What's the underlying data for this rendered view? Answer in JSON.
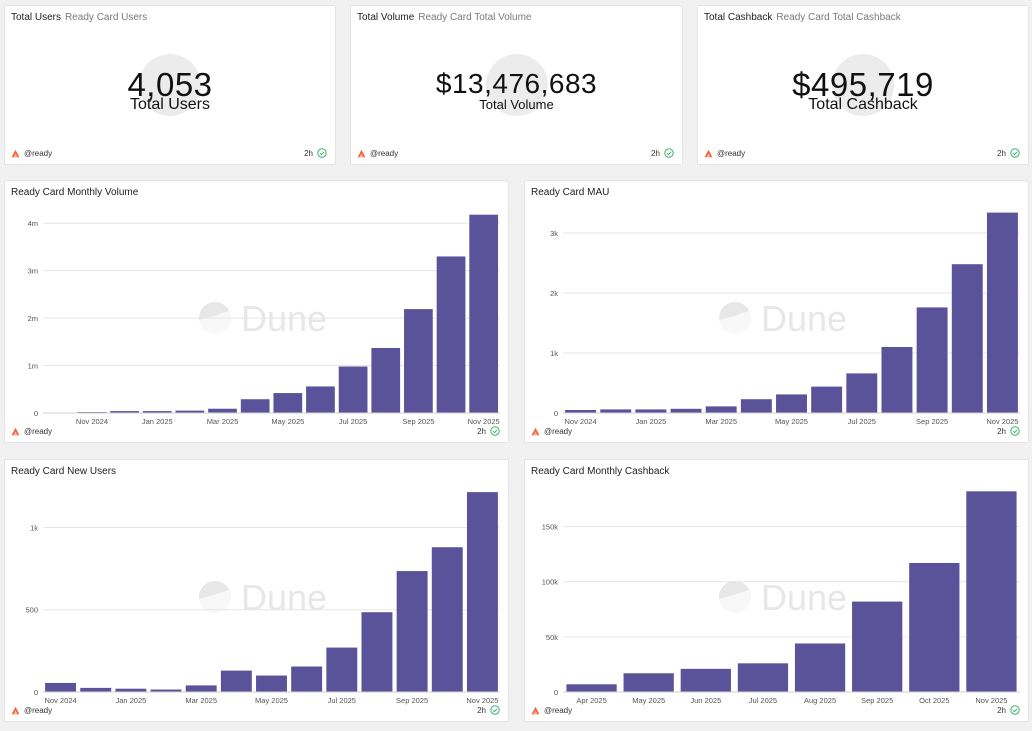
{
  "counters": [
    {
      "title": "Total Users",
      "subtitle": "Ready Card Users",
      "value": "4,053",
      "label": "Total Users",
      "author": "@ready",
      "age": "2h"
    },
    {
      "title": "Total Volume",
      "subtitle": "Ready Card Total Volume",
      "value": "$13,476,683",
      "label": "Total Volume",
      "author": "@ready",
      "age": "2h"
    },
    {
      "title": "Total Cashback",
      "subtitle": "Ready Card Total Cashback",
      "value": "$495,719",
      "label": "Total Cashback",
      "author": "@ready",
      "age": "2h"
    }
  ],
  "charts_meta": [
    {
      "title": "Ready Card Monthly Volume",
      "author": "@ready",
      "age": "2h",
      "watermark": "Dune"
    },
    {
      "title": "Ready Card MAU",
      "author": "@ready",
      "age": "2h",
      "watermark": "Dune"
    },
    {
      "title": "Ready Card New Users",
      "author": "@ready",
      "age": "2h",
      "watermark": "Dune"
    },
    {
      "title": "Ready Card Monthly Cashback",
      "author": "@ready",
      "age": "2h",
      "watermark": "Dune"
    }
  ],
  "colors": {
    "bar": "#5b5399",
    "grid": "#e6e6e6",
    "accent": "#f4623a",
    "check": "#3bb26b"
  },
  "chart_data": [
    {
      "type": "bar",
      "title": "Ready Card Monthly Volume",
      "categories": [
        "Oct 2024",
        "Nov 2024",
        "Dec 2024",
        "Jan 2025",
        "Feb 2025",
        "Mar 2025",
        "Apr 2025",
        "May 2025",
        "Jun 2025",
        "Jul 2025",
        "Aug 2025",
        "Sep 2025",
        "Oct 2025",
        "Nov 2025"
      ],
      "x_tick_labels": [
        "Nov 2024",
        "Jan 2025",
        "Mar 2025",
        "May 2025",
        "Jul 2025",
        "Sep 2025",
        "Nov 2025"
      ],
      "values": [
        10000,
        20000,
        40000,
        40000,
        50000,
        90000,
        290000,
        420000,
        560000,
        980000,
        1370000,
        2190000,
        3300000,
        4180000
      ],
      "y_ticks": [
        0,
        1000000,
        2000000,
        3000000,
        4000000
      ],
      "y_tick_labels": [
        "0",
        "1m",
        "2m",
        "3m",
        "4m"
      ],
      "ylim": [
        0,
        4300000
      ],
      "grid": true
    },
    {
      "type": "bar",
      "title": "Ready Card MAU",
      "categories": [
        "Nov 2024",
        "Dec 2024",
        "Jan 2025",
        "Feb 2025",
        "Mar 2025",
        "Apr 2025",
        "May 2025",
        "Jun 2025",
        "Jul 2025",
        "Aug 2025",
        "Sep 2025",
        "Oct 2025",
        "Nov 2025"
      ],
      "x_tick_labels": [
        "Nov 2024",
        "Jan 2025",
        "Mar 2025",
        "May 2025",
        "Jul 2025",
        "Sep 2025",
        "Nov 2025"
      ],
      "values": [
        50,
        60,
        60,
        70,
        110,
        230,
        310,
        440,
        660,
        1100,
        1760,
        2480,
        3340
      ],
      "y_ticks": [
        0,
        1000,
        2000,
        3000
      ],
      "y_tick_labels": [
        "0",
        "1k",
        "2k",
        "3k"
      ],
      "ylim": [
        0,
        3400
      ],
      "grid": true
    },
    {
      "type": "bar",
      "title": "Ready Card New Users",
      "categories": [
        "Nov 2024",
        "Dec 2024",
        "Jan 2025",
        "Feb 2025",
        "Mar 2025",
        "Apr 2025",
        "May 2025",
        "Jun 2025",
        "Jul 2025",
        "Aug 2025",
        "Sep 2025",
        "Oct 2025",
        "Nov 2025"
      ],
      "x_tick_labels": [
        "Nov 2024",
        "Jan 2025",
        "Mar 2025",
        "May 2025",
        "Jul 2025",
        "Sep 2025",
        "Nov 2025"
      ],
      "values": [
        55,
        25,
        20,
        15,
        40,
        130,
        100,
        155,
        270,
        485,
        735,
        880,
        1215
      ],
      "y_ticks": [
        0,
        500,
        1000
      ],
      "y_tick_labels": [
        "0",
        "500",
        "1k"
      ],
      "ylim": [
        0,
        1240
      ],
      "grid": true
    },
    {
      "type": "bar",
      "title": "Ready Card Monthly Cashback",
      "categories": [
        "Apr 2025",
        "May 2025",
        "Jun 2025",
        "Jul 2025",
        "Aug 2025",
        "Sep 2025",
        "Oct 2025",
        "Nov 2025"
      ],
      "x_tick_labels": [
        "Apr 2025",
        "May 2025",
        "Jun 2025",
        "Jul 2025",
        "Aug 2025",
        "Sep 2025",
        "Oct 2025",
        "Nov 2025"
      ],
      "values": [
        7000,
        17000,
        21000,
        26000,
        44000,
        82000,
        117000,
        182000
      ],
      "y_ticks": [
        0,
        50000,
        100000,
        150000
      ],
      "y_tick_labels": [
        "0",
        "50k",
        "100k",
        "150k"
      ],
      "ylim": [
        0,
        185000
      ],
      "grid": true
    }
  ]
}
